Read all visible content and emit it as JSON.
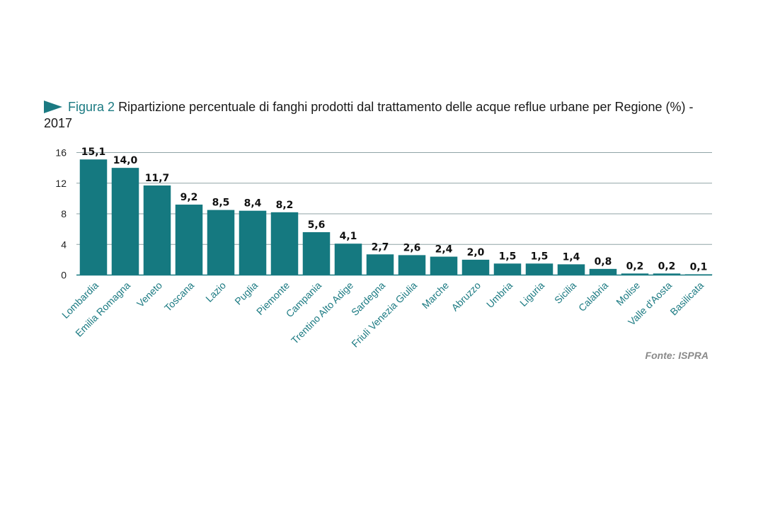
{
  "figure": {
    "label": "Figura 2",
    "title": "Ripartizione percentuale di fanghi prodotti dal trattamento delle acque reflue urbane per Regione (%) - 2017",
    "source": "Fonte: ISPRA"
  },
  "colors": {
    "bar": "#157980",
    "accent": "#1b7a82",
    "grid": "#8fa3a6"
  },
  "chart_data": {
    "type": "bar",
    "title": "Ripartizione percentuale di fanghi prodotti dal trattamento delle acque reflue urbane per Regione (%) - 2017",
    "xlabel": "",
    "ylabel": "",
    "ylim": [
      0,
      16
    ],
    "yticks": [
      0,
      4,
      8,
      12,
      16
    ],
    "grid": true,
    "categories": [
      "Lombardia",
      "Emilia Romagna",
      "Veneto",
      "Toscana",
      "Lazio",
      "Puglia",
      "Piemonte",
      "Campania",
      "Trentino Alto Adige",
      "Sardegna",
      "Friuli Venezia Giulia",
      "Marche",
      "Abruzzo",
      "Umbria",
      "Liguria",
      "Sicilia",
      "Calabria",
      "Molise",
      "Valle d'Aosta",
      "Basilicata"
    ],
    "values": [
      15.1,
      14.0,
      11.7,
      9.2,
      8.5,
      8.4,
      8.2,
      5.6,
      4.1,
      2.7,
      2.6,
      2.4,
      2.0,
      1.5,
      1.5,
      1.4,
      0.8,
      0.2,
      0.2,
      0.1
    ],
    "value_labels": [
      "15,1",
      "14,0",
      "11,7",
      "9,2",
      "8,5",
      "8,4",
      "8,2",
      "5,6",
      "4,1",
      "2,7",
      "2,6",
      "2,4",
      "2,0",
      "1,5",
      "1,5",
      "1,4",
      "0,8",
      "0,2",
      "0,2",
      "0,1"
    ],
    "source": "Fonte: ISPRA"
  }
}
